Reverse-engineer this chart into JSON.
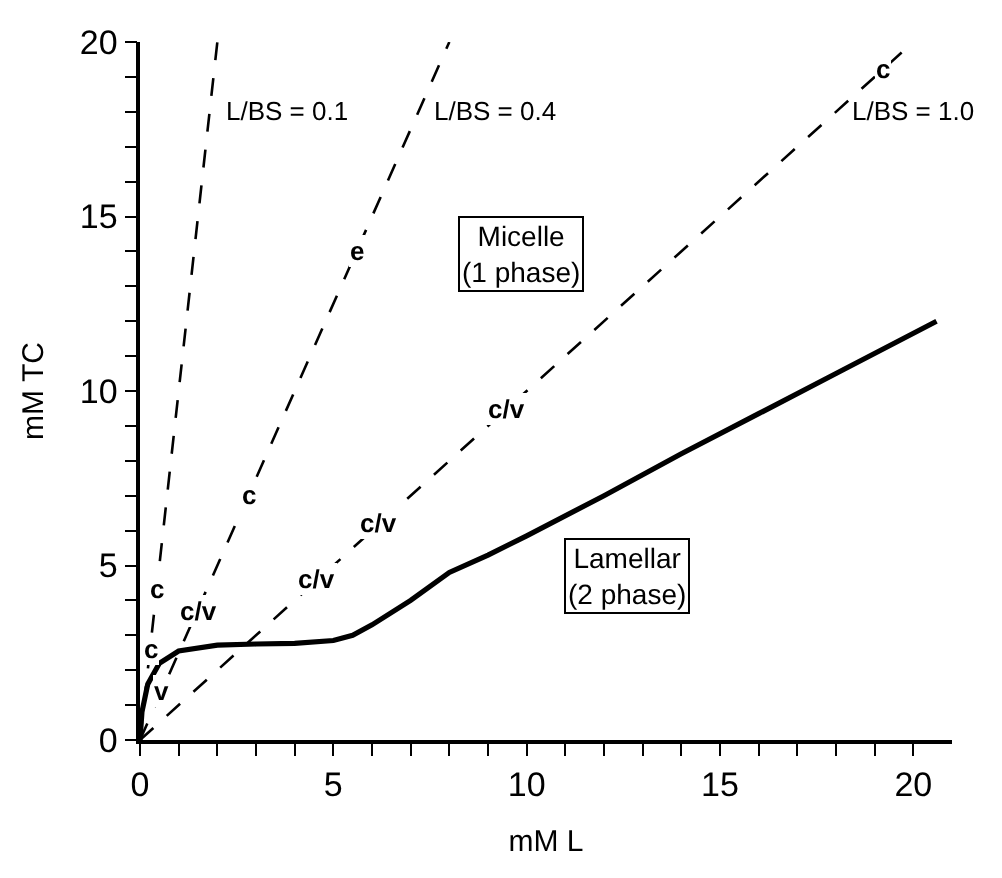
{
  "chart_data": {
    "type": "line",
    "xlabel": "mM L",
    "ylabel": "mM TC",
    "xlim": [
      0,
      21
    ],
    "ylim": [
      0,
      20
    ],
    "xticks": [
      0,
      {
        "value": 1,
        "label": null
      },
      {
        "value": 2,
        "label": null
      },
      {
        "value": 3,
        "label": null
      },
      {
        "value": 4,
        "label": null
      },
      5,
      {
        "value": 6,
        "label": null
      },
      {
        "value": 7,
        "label": null
      },
      {
        "value": 8,
        "label": null
      },
      {
        "value": 9,
        "label": null
      },
      10,
      {
        "value": 11,
        "label": null
      },
      {
        "value": 12,
        "label": null
      },
      {
        "value": 13,
        "label": null
      },
      {
        "value": 14,
        "label": null
      },
      15,
      {
        "value": 16,
        "label": null
      },
      {
        "value": 17,
        "label": null
      },
      {
        "value": 18,
        "label": null
      },
      {
        "value": 19,
        "label": null
      },
      20
    ],
    "yticks": [
      0,
      {
        "value": 1,
        "label": null
      },
      {
        "value": 2,
        "label": null
      },
      {
        "value": 3,
        "label": null
      },
      {
        "value": 4,
        "label": null
      },
      5,
      {
        "value": 6,
        "label": null
      },
      {
        "value": 7,
        "label": null
      },
      {
        "value": 8,
        "label": null
      },
      {
        "value": 9,
        "label": null
      },
      10,
      {
        "value": 11,
        "label": null
      },
      {
        "value": 12,
        "label": null
      },
      {
        "value": 13,
        "label": null
      },
      {
        "value": 14,
        "label": null
      },
      15,
      {
        "value": 16,
        "label": null
      },
      {
        "value": 17,
        "label": null
      },
      {
        "value": 18,
        "label": null
      },
      {
        "value": 19,
        "label": null
      },
      20
    ],
    "grid": false,
    "legend": false,
    "marker": "none",
    "series": [
      {
        "name": "L/BS = 0.1",
        "color": "#000000",
        "line_style": "dashed",
        "x": [
          0,
          2
        ],
        "values": [
          0,
          20
        ]
      },
      {
        "name": "L/BS = 0.4",
        "color": "#000000",
        "line_style": "dashed",
        "x": [
          0,
          8
        ],
        "values": [
          0,
          20
        ]
      },
      {
        "name": "L/BS = 1.0",
        "color": "#000000",
        "line_style": "dashed",
        "x": [
          0,
          20
        ],
        "values": [
          0,
          20
        ]
      },
      {
        "color": "#000000",
        "line_style": "solid",
        "x": [
          0,
          0.05,
          0.2,
          0.5,
          1,
          2,
          3,
          4,
          5,
          5.5,
          6,
          7,
          8,
          9,
          10,
          12,
          14,
          16,
          18,
          20.6
        ],
        "values": [
          0,
          0.8,
          1.6,
          2.2,
          2.55,
          2.72,
          2.75,
          2.77,
          2.85,
          3.0,
          3.3,
          4.0,
          4.8,
          5.3,
          5.85,
          7.0,
          8.2,
          9.35,
          10.5,
          12.0
        ]
      }
    ],
    "annotations": [
      {
        "text": "c",
        "x": 19.2,
        "y": 19.2
      },
      {
        "text": "e",
        "x": 5.6,
        "y": 14
      },
      {
        "text": "c/v",
        "x": 9.5,
        "y": 9.5
      },
      {
        "text": "c/v",
        "x": 6.2,
        "y": 6.2
      },
      {
        "text": "c/v",
        "x": 4.6,
        "y": 4.6
      },
      {
        "text": "c",
        "x": 2.8,
        "y": 7
      },
      {
        "text": "c/v",
        "x": 1.5,
        "y": 3.7
      },
      {
        "text": "c",
        "x": 0.43,
        "y": 4.3
      },
      {
        "text": "c",
        "x": 0.26,
        "y": 2.6
      },
      {
        "text": "v",
        "x": 0.56,
        "y": 1.4
      },
      "Micelle\n(1 phase)",
      "Lamellar\n(2 phase)"
    ]
  }
}
